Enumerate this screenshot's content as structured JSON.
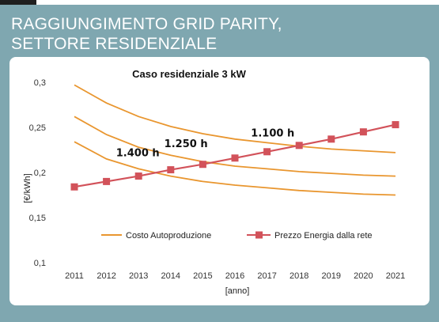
{
  "header": {
    "line1": "RAGGIUNGIMENTO GRID PARITY,",
    "line2": "SETTORE RESIDENZIALE"
  },
  "colors": {
    "panel": "#7fa7b0",
    "cost_line": "#e9962f",
    "grid_price": "#d2525a"
  },
  "chart_data": {
    "type": "line",
    "title": "Caso residenziale 3 kW",
    "xlabel": "[anno]",
    "ylabel": "[€/kWh]",
    "x": [
      2011,
      2012,
      2013,
      2014,
      2015,
      2016,
      2017,
      2018,
      2019,
      2020,
      2021
    ],
    "y_ticks": [
      "0,1",
      "0,15",
      "0,2",
      "0,25",
      "0,3"
    ],
    "ylim": [
      0.1,
      0.3
    ],
    "grid": false,
    "legend_position": "bottom-center",
    "series": [
      {
        "name": "Costo Autoproduzione",
        "style": "line",
        "values": [
          0.297,
          0.277,
          0.262,
          0.251,
          0.243,
          0.237,
          0.233,
          0.229,
          0.226,
          0.224,
          0.222
        ]
      },
      {
        "name": "Costo Autoproduzione",
        "style": "line",
        "values": [
          0.262,
          0.242,
          0.228,
          0.219,
          0.212,
          0.207,
          0.204,
          0.201,
          0.199,
          0.197,
          0.196
        ]
      },
      {
        "name": "Costo Autoproduzione",
        "style": "line",
        "values": [
          0.234,
          0.215,
          0.204,
          0.196,
          0.19,
          0.186,
          0.183,
          0.18,
          0.178,
          0.176,
          0.175
        ]
      },
      {
        "name": "Prezzo Energia dalla rete",
        "style": "line-markers",
        "values": [
          0.184,
          0.19,
          0.196,
          0.203,
          0.209,
          0.216,
          0.223,
          0.23,
          0.237,
          0.245,
          0.253
        ]
      }
    ],
    "annotations": [
      {
        "text": "1.100 h",
        "x": 2016.5,
        "y": 0.24
      },
      {
        "text": "1.250 h",
        "x": 2013.8,
        "y": 0.228
      },
      {
        "text": "1.400 h",
        "x": 2012.3,
        "y": 0.218
      }
    ],
    "legend": [
      "Costo Autoproduzione",
      "Prezzo Energia dalla rete"
    ]
  }
}
